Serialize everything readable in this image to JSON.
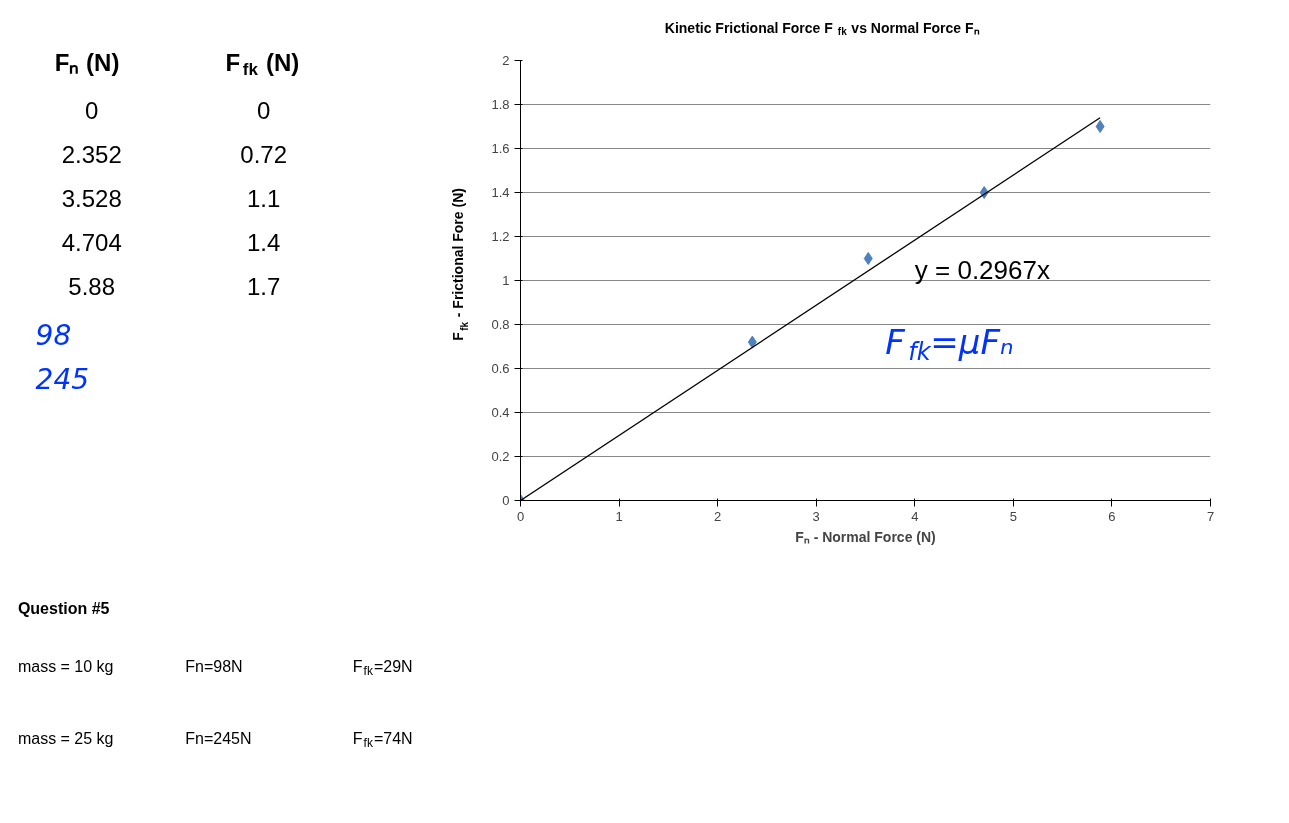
{
  "chart_data": {
    "type": "scatter",
    "title": "Kinetic Frictional Force F$_{fk}$ vs Normal Force Fₙ",
    "xlabel": "Fₙ - Normal Force (N)",
    "ylabel": "F$_{fk}$ - Frictional Fore (N)",
    "series": [
      {
        "color": "#4f81bd",
        "marker": "diamond",
        "x": [
          0,
          2.352,
          3.528,
          4.704,
          5.88
        ],
        "values": [
          0,
          0.72,
          1.1,
          1.4,
          1.7
        ]
      },
      {
        "type": "line",
        "color": "#000000",
        "x": [
          0,
          5.88
        ],
        "values": [
          0,
          1.74
        ]
      }
    ],
    "xlim": [
      0,
      7
    ],
    "xticks": [
      0,
      1,
      2,
      3,
      4,
      5,
      6,
      7
    ],
    "ylim": [
      0,
      2
    ],
    "yticks": [
      0,
      {
        "value": 0.2,
        "label": "0.2"
      },
      {
        "value": 0.4,
        "label": "0.4"
      },
      {
        "value": 0.6,
        "label": "0.6"
      },
      {
        "value": 0.8,
        "label": "0.8"
      },
      1,
      {
        "value": 1.2,
        "label": "1.2"
      },
      {
        "value": 1.4,
        "label": "1.4"
      },
      {
        "value": 1.6,
        "label": "1.6"
      },
      {
        "value": 1.8,
        "label": "1.8"
      },
      2
    ],
    "grid": "y",
    "annotations": [
      "y = 0.2967x",
      "F$_{fk}$=μFₙ",
      "Fₙ (N)",
      "F$_{fk}$ (N)",
      "0",
      "0",
      "2.352",
      "0.72",
      "3.528",
      "1.1",
      "4.704",
      "1.4",
      "5.88",
      "1.7",
      "98",
      "245",
      "Question #5",
      "mass = 10 kg",
      "Fn=98N",
      "F$_{fk}$=29N",
      "mass = 25 kg",
      "Fn=245N",
      "F$_{fk}$=74N"
    ]
  }
}
